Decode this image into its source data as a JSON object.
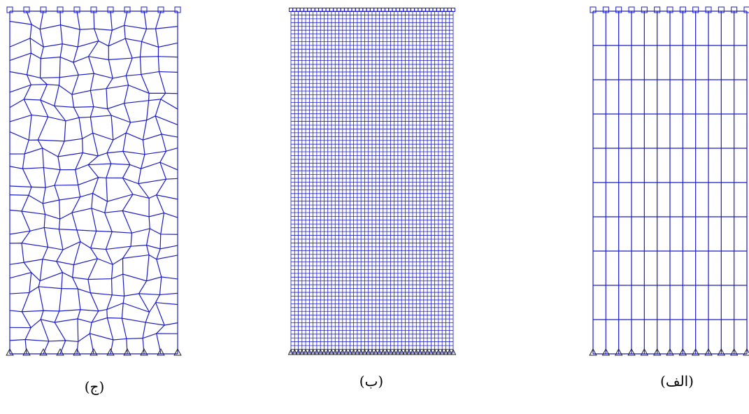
{
  "labels": [
    "(ج)",
    "(ب)",
    "(الف)"
  ]
}
